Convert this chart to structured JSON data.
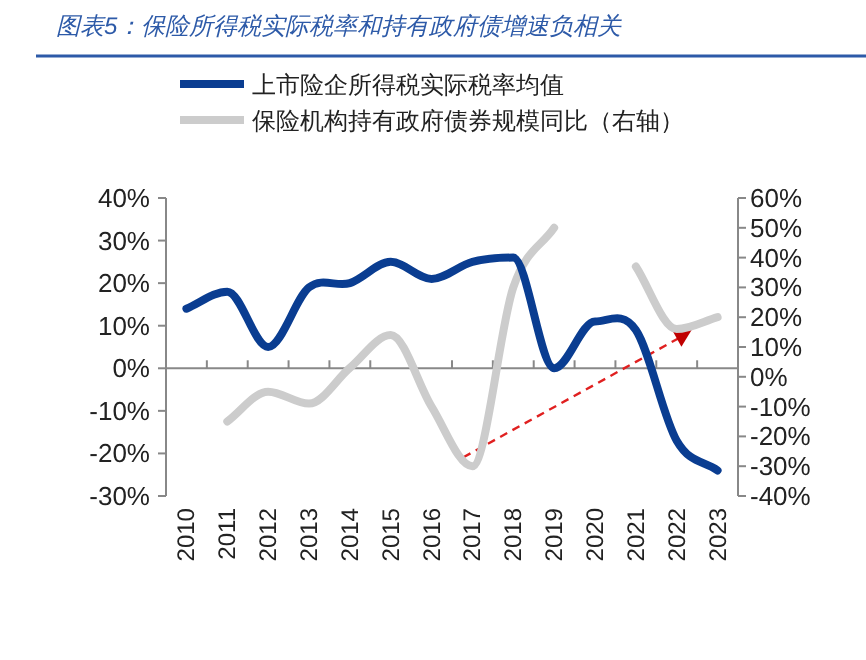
{
  "chart_data": {
    "type": "line",
    "title": "图表5：保险所得税实际税率和持有政府债增速负相关",
    "categories": [
      "2010",
      "2011",
      "2012",
      "2013",
      "2014",
      "2015",
      "2016",
      "2017",
      "2018",
      "2019",
      "2020",
      "2021",
      "2022",
      "2023"
    ],
    "series": [
      {
        "name": "上市险企所得税实际税率均值",
        "color": "#0a3d91",
        "values": [
          14,
          18,
          5,
          19,
          20,
          25,
          21,
          25,
          26,
          0,
          11,
          9,
          -17,
          -24
        ]
      },
      {
        "name": "保险机构持有政府债券规模同比（右轴）",
        "color": "#cccccc",
        "axis": "y2",
        "values": [
          null,
          -15,
          -5,
          -9,
          3,
          14,
          -10,
          -30,
          30,
          50,
          null,
          37,
          16,
          20
        ]
      }
    ],
    "ylim": [
      -30,
      40
    ],
    "yticks": [
      {
        "value": -30,
        "label": "-30%"
      },
      {
        "value": -20,
        "label": "-20%"
      },
      {
        "value": -10,
        "label": "-10%"
      },
      {
        "value": 0,
        "label": "0%"
      },
      {
        "value": 10,
        "label": "10%"
      },
      {
        "value": 20,
        "label": "20%"
      },
      {
        "value": 30,
        "label": "30%"
      },
      {
        "value": 40,
        "label": "40%"
      }
    ],
    "y2lim": [
      -40,
      60
    ],
    "y2ticks": [
      {
        "value": -40,
        "label": "-40%"
      },
      {
        "value": -30,
        "label": "-30%"
      },
      {
        "value": -20,
        "label": "-20%"
      },
      {
        "value": -10,
        "label": "-10%"
      },
      {
        "value": 0,
        "label": "0%"
      },
      {
        "value": 10,
        "label": "10%"
      },
      {
        "value": 20,
        "label": "20%"
      },
      {
        "value": 30,
        "label": "30%"
      },
      {
        "value": 40,
        "label": "40%"
      },
      {
        "value": 50,
        "label": "50%"
      },
      {
        "value": 60,
        "label": "60%"
      }
    ],
    "legend": "top left",
    "marker": "none",
    "line_style": "solid"
  }
}
